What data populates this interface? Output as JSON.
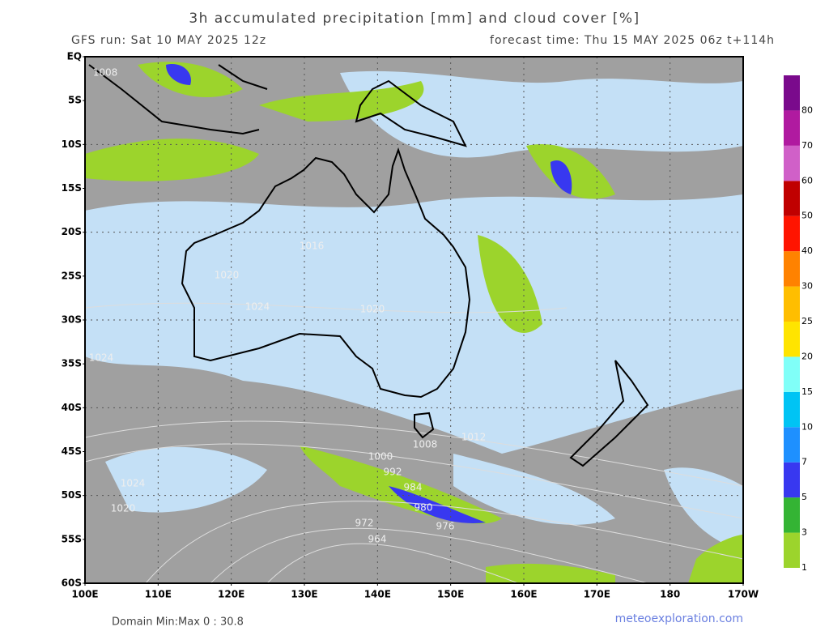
{
  "header": {
    "title": "3h accumulated precipitation [mm] and cloud cover [%]",
    "run": "GFS run: Sat 10 MAY 2025 12z",
    "forecast": "forecast time: Thu 15 MAY 2025 06z  t+114h"
  },
  "map": {
    "lat_labels": [
      "EQ",
      "5S",
      "10S",
      "15S",
      "20S",
      "25S",
      "30S",
      "35S",
      "40S",
      "45S",
      "50S",
      "55S",
      "60S"
    ],
    "lon_labels": [
      "100E",
      "110E",
      "120E",
      "130E",
      "140E",
      "150E",
      "160E",
      "170E",
      "180",
      "170W"
    ],
    "isobar_labels": [
      "1008",
      "1016",
      "1024",
      "1020",
      "1024",
      "1020",
      "1008",
      "1012",
      "1000",
      "992",
      "984",
      "980",
      "976",
      "972",
      "964",
      "1024",
      "1020"
    ]
  },
  "colorbar": {
    "levels": [
      1,
      3,
      5,
      7,
      10,
      15,
      20,
      25,
      30,
      40,
      50,
      60,
      70,
      80
    ],
    "colors": [
      "#9cd42c",
      "#34b434",
      "#3838f0",
      "#1e90ff",
      "#00c4f4",
      "#80fff8",
      "#ffe400",
      "#ffbe00",
      "#ff8200",
      "#ff1400",
      "#c00000",
      "#d060c8",
      "#b01aa0",
      "#7a0a8c"
    ]
  },
  "footer": {
    "domain": "Domain Min:Max 0 : 30.8",
    "site": "meteoexploration.com"
  }
}
